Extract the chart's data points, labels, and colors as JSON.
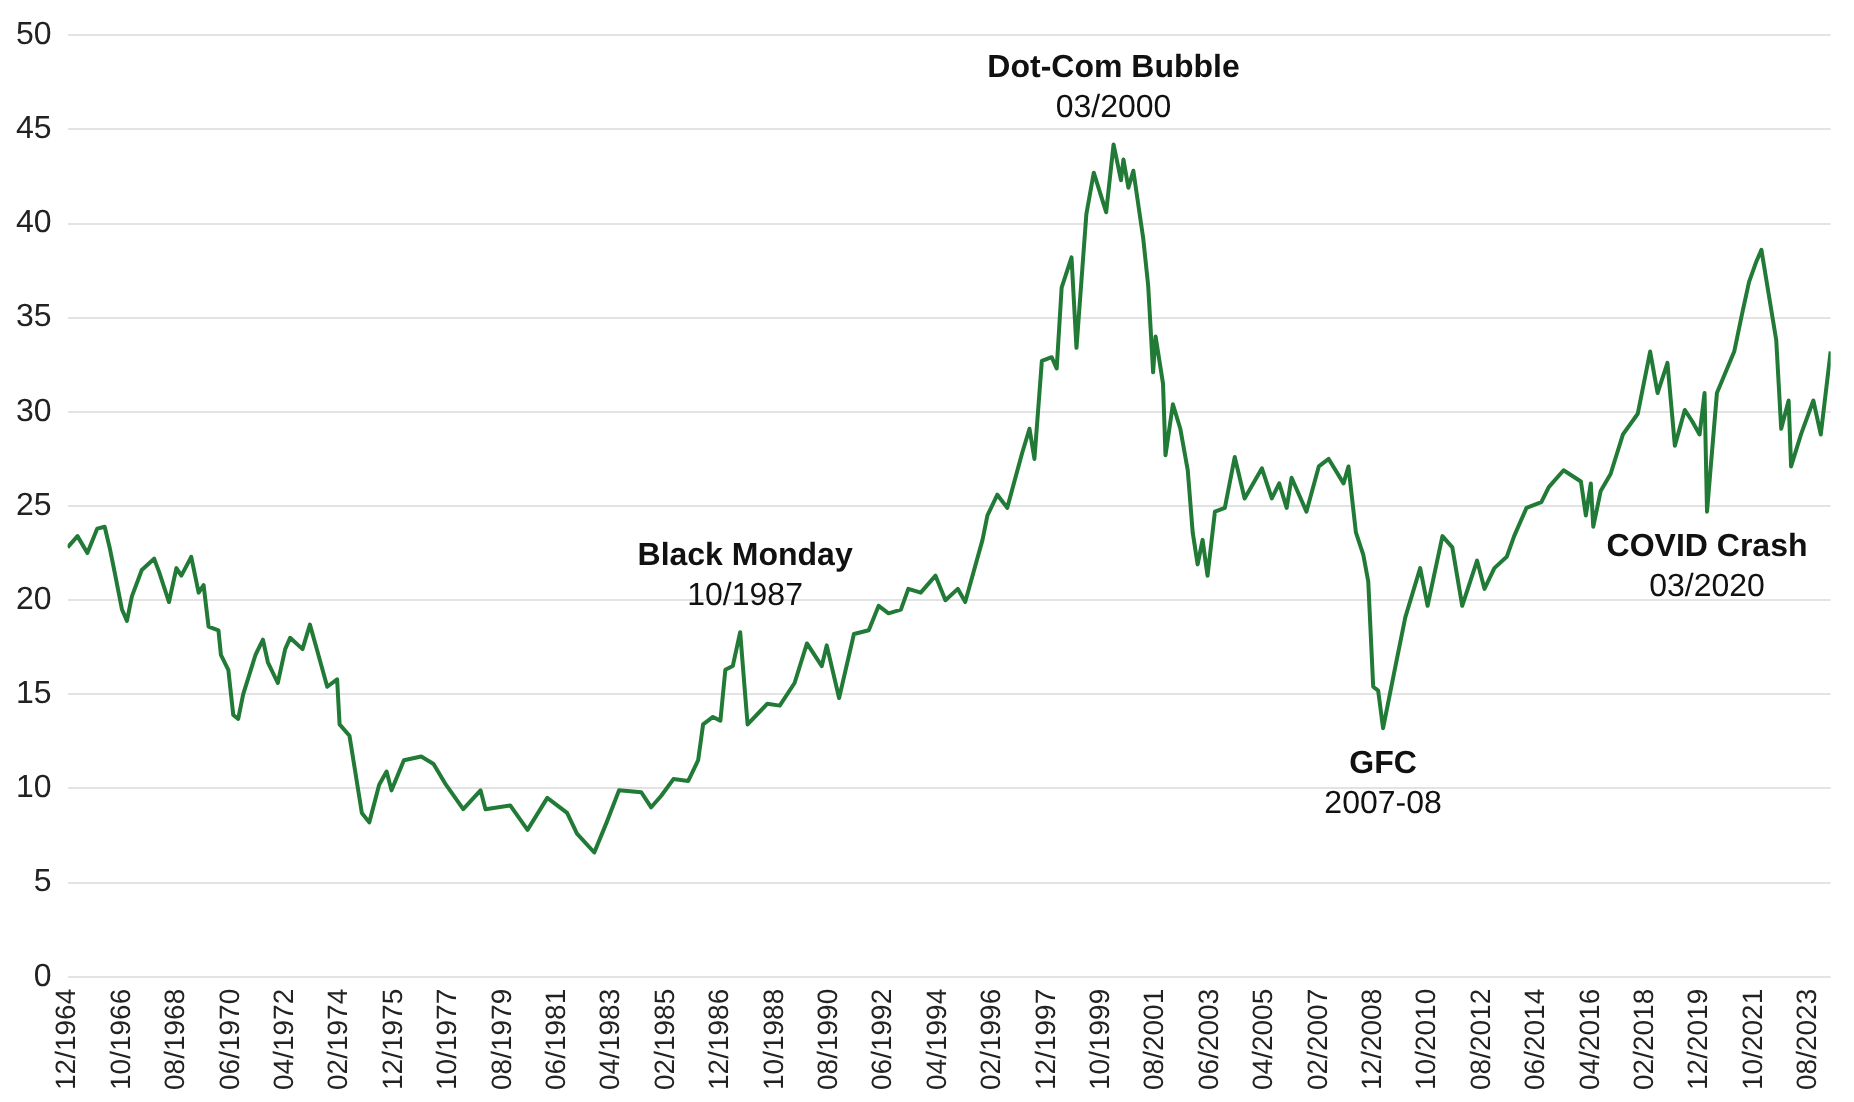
{
  "chart_data": {
    "type": "line",
    "color": "#217a36",
    "line_style": "solid",
    "marker": "none",
    "grid": "y",
    "x": [
      "1964-12",
      "1965-04",
      "1965-08",
      "1965-12",
      "1966-03",
      "1966-05",
      "1966-07",
      "1966-10",
      "1966-12",
      "1967-02",
      "1967-06",
      "1967-11",
      "1968-01",
      "1968-05",
      "1968-08",
      "1968-10",
      "1969-02",
      "1969-05",
      "1969-07",
      "1969-09",
      "1970-01",
      "1970-02",
      "1970-05",
      "1970-07",
      "1970-09",
      "1970-11",
      "1971-04",
      "1971-07",
      "1971-09",
      "1972-01",
      "1972-04",
      "1972-06",
      "1972-11",
      "1973-02",
      "1973-05",
      "1973-09",
      "1974-01",
      "1974-02",
      "1974-06",
      "1974-11",
      "1975-02",
      "1975-06",
      "1975-09",
      "1975-11",
      "1976-04",
      "1976-11",
      "1977-04",
      "1977-09",
      "1978-04",
      "1978-11",
      "1979-01",
      "1979-11",
      "1980-06",
      "1981-02",
      "1981-10",
      "1982-02",
      "1982-09",
      "1983-02",
      "1983-07",
      "1984-04",
      "1984-08",
      "1984-12",
      "1985-05",
      "1985-11",
      "1986-03",
      "1986-05",
      "1986-09",
      "1986-12",
      "1987-02",
      "1987-05",
      "1987-08",
      "1987-10",
      "1987-11",
      "1988-07",
      "1988-12",
      "1989-06",
      "1989-11",
      "1990-05",
      "1990-07",
      "1990-12",
      "1991-06",
      "1991-12",
      "1992-04",
      "1992-08",
      "1993-01",
      "1993-04",
      "1993-09",
      "1994-03",
      "1994-07",
      "1994-12",
      "1995-03",
      "1995-10",
      "1995-12",
      "1996-04",
      "1996-08",
      "1997-02",
      "1997-05",
      "1997-07",
      "1997-10",
      "1998-02",
      "1998-04",
      "1998-06",
      "1998-10",
      "1998-12",
      "1999-04",
      "1999-07",
      "1999-12",
      "2000-03",
      "2000-06",
      "2000-07",
      "2000-09",
      "2000-11",
      "2001-03",
      "2001-05",
      "2001-07",
      "2001-08",
      "2001-11",
      "2001-12",
      "2002-03",
      "2002-06",
      "2002-09",
      "2002-11",
      "2003-01",
      "2003-03",
      "2003-05",
      "2003-08",
      "2003-12",
      "2004-04",
      "2004-08",
      "2005-03",
      "2005-07",
      "2005-10",
      "2006-01",
      "2006-03",
      "2006-09",
      "2007-02",
      "2007-06",
      "2007-12",
      "2008-02",
      "2008-05",
      "2008-08",
      "2008-10",
      "2008-12",
      "2009-02",
      "2009-04",
      "2009-09",
      "2010-01",
      "2010-04",
      "2010-07",
      "2010-10",
      "2011-04",
      "2011-08",
      "2011-12",
      "2012-06",
      "2012-09",
      "2013-01",
      "2013-06",
      "2013-09",
      "2014-02",
      "2014-08",
      "2014-11",
      "2015-05",
      "2015-12",
      "2016-02",
      "2016-04",
      "2016-05",
      "2016-08",
      "2016-12",
      "2017-05",
      "2017-11",
      "2018-04",
      "2018-07",
      "2018-11",
      "2019-02",
      "2019-06",
      "2019-09",
      "2019-12",
      "2020-02",
      "2020-03",
      "2020-07",
      "2021-02",
      "2021-05",
      "2021-08",
      "2021-11",
      "2022-01",
      "2022-07",
      "2022-09",
      "2022-12",
      "2023-01",
      "2023-05",
      "2023-10",
      "2024-01",
      "2024-05"
    ],
    "values": [
      22.8,
      23.4,
      22.5,
      23.8,
      23.9,
      22.8,
      21.5,
      19.5,
      18.9,
      20.2,
      21.6,
      22.2,
      21.5,
      19.9,
      21.7,
      21.3,
      22.3,
      20.4,
      20.8,
      18.6,
      18.4,
      17.1,
      16.3,
      13.9,
      13.7,
      15.0,
      17.1,
      17.9,
      16.7,
      15.6,
      17.4,
      18.0,
      17.4,
      18.7,
      17.3,
      15.4,
      15.8,
      13.4,
      12.8,
      8.7,
      8.2,
      10.2,
      10.9,
      9.9,
      11.5,
      11.7,
      11.3,
      10.2,
      8.9,
      9.9,
      8.9,
      9.1,
      7.8,
      9.5,
      8.7,
      7.6,
      6.6,
      8.2,
      9.9,
      9.8,
      9.0,
      9.6,
      10.5,
      10.4,
      11.5,
      13.4,
      13.8,
      13.6,
      16.3,
      16.5,
      18.3,
      15.0,
      13.4,
      14.5,
      14.4,
      15.6,
      17.7,
      16.5,
      17.6,
      14.8,
      18.2,
      18.4,
      19.7,
      19.3,
      19.5,
      20.6,
      20.4,
      21.3,
      20.0,
      20.6,
      19.9,
      23.2,
      24.5,
      25.6,
      24.9,
      27.8,
      29.1,
      27.5,
      32.7,
      32.9,
      32.3,
      36.6,
      38.2,
      33.4,
      40.5,
      42.7,
      40.6,
      44.2,
      42.3,
      43.4,
      41.9,
      42.8,
      39.2,
      36.7,
      32.1,
      34.0,
      31.5,
      27.7,
      30.4,
      29.1,
      26.9,
      23.6,
      21.9,
      23.2,
      21.3,
      24.7,
      24.9,
      27.6,
      25.4,
      27.0,
      25.4,
      26.2,
      24.9,
      26.5,
      24.7,
      27.1,
      27.5,
      26.2,
      27.1,
      23.6,
      22.4,
      21.0,
      15.4,
      15.2,
      13.2,
      16.5,
      19.1,
      20.4,
      21.7,
      19.7,
      23.4,
      22.8,
      19.7,
      22.1,
      20.6,
      21.7,
      22.3,
      23.4,
      24.9,
      25.2,
      26.0,
      26.9,
      26.3,
      24.5,
      26.2,
      23.9,
      25.8,
      26.7,
      28.8,
      29.9,
      33.2,
      31.0,
      32.6,
      28.2,
      30.1,
      29.5,
      28.8,
      31.0,
      24.7,
      31.0,
      33.2,
      35.1,
      36.9,
      38.0,
      38.6,
      33.8,
      29.1,
      30.6,
      27.1,
      28.8,
      30.6,
      28.8,
      33.2
    ],
    "xlim": [
      "1964-12",
      "2024-05"
    ],
    "xticks": [
      {
        "value": "1964-12",
        "label": "12/1964"
      },
      {
        "value": "1966-10",
        "label": "10/1966"
      },
      {
        "value": "1968-08",
        "label": "08/1968"
      },
      {
        "value": "1970-06",
        "label": "06/1970"
      },
      {
        "value": "1972-04",
        "label": "04/1972"
      },
      {
        "value": "1974-02",
        "label": "02/1974"
      },
      {
        "value": "1975-12",
        "label": "12/1975"
      },
      {
        "value": "1977-10",
        "label": "10/1977"
      },
      {
        "value": "1979-08",
        "label": "08/1979"
      },
      {
        "value": "1981-06",
        "label": "06/1981"
      },
      {
        "value": "1983-04",
        "label": "04/1983"
      },
      {
        "value": "1985-02",
        "label": "02/1985"
      },
      {
        "value": "1986-12",
        "label": "12/1986"
      },
      {
        "value": "1988-10",
        "label": "10/1988"
      },
      {
        "value": "1990-08",
        "label": "08/1990"
      },
      {
        "value": "1992-06",
        "label": "06/1992"
      },
      {
        "value": "1994-04",
        "label": "04/1994"
      },
      {
        "value": "1996-02",
        "label": "02/1996"
      },
      {
        "value": "1997-12",
        "label": "12/1997"
      },
      {
        "value": "1999-10",
        "label": "10/1999"
      },
      {
        "value": "2001-08",
        "label": "08/2001"
      },
      {
        "value": "2003-06",
        "label": "06/2003"
      },
      {
        "value": "2005-04",
        "label": "04/2005"
      },
      {
        "value": "2007-02",
        "label": "02/2007"
      },
      {
        "value": "2008-12",
        "label": "12/2008"
      },
      {
        "value": "2010-10",
        "label": "10/2010"
      },
      {
        "value": "2012-08",
        "label": "08/2012"
      },
      {
        "value": "2014-06",
        "label": "06/2014"
      },
      {
        "value": "2016-04",
        "label": "04/2016"
      },
      {
        "value": "2018-02",
        "label": "02/2018"
      },
      {
        "value": "2019-12",
        "label": "12/2019"
      },
      {
        "value": "2021-10",
        "label": "10/2021"
      },
      {
        "value": "2023-08",
        "label": "08/2023"
      }
    ],
    "ylim": [
      0,
      50
    ],
    "yticks": [
      0,
      5,
      10,
      15,
      20,
      25,
      30,
      35,
      40,
      45,
      50
    ],
    "annotations": [
      {
        "text": "Black Monday\n10/1987",
        "x": "1987-10",
        "y": 15.0
      },
      {
        "text": "Dot-Com Bubble\n03/2000",
        "x": "2000-03",
        "y": 44.2
      },
      {
        "text": "GFC\n2007-08",
        "x": "2009-04",
        "y": 13.2
      },
      {
        "text": "COVID Crash\n03/2020",
        "x": "2020-03",
        "y": 24.7
      }
    ]
  }
}
